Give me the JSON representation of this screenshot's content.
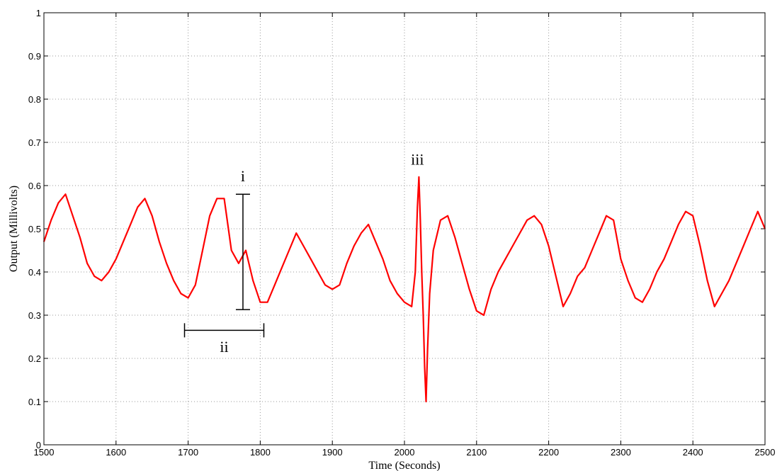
{
  "chart_data": {
    "type": "line",
    "title": "",
    "xlabel": "Time (Seconds)",
    "ylabel": "Output (Millivolts)",
    "xlim": [
      1500,
      2500
    ],
    "ylim": [
      0,
      1
    ],
    "xticks": [
      1500,
      1600,
      1700,
      1800,
      1900,
      2000,
      2100,
      2200,
      2300,
      2400,
      2500
    ],
    "yticks": [
      0,
      0.1,
      0.2,
      0.3,
      0.4,
      0.5,
      0.6,
      0.7,
      0.8,
      0.9,
      1
    ],
    "ytick_labels": [
      "0",
      "0.1",
      "0.2",
      "0.3",
      "0.4",
      "0.5",
      "0.6",
      "0.7",
      "0.8",
      "0.9",
      "1"
    ],
    "grid": true,
    "line_color": "#ff0000",
    "series": [
      {
        "x": [
          1500,
          1510,
          1520,
          1530,
          1540,
          1550,
          1560,
          1570,
          1580,
          1590,
          1600,
          1610,
          1620,
          1630,
          1640,
          1650,
          1660,
          1670,
          1680,
          1690,
          1700,
          1710,
          1720,
          1730,
          1740,
          1750,
          1760,
          1770,
          1780,
          1790,
          1800,
          1810,
          1820,
          1830,
          1840,
          1850,
          1860,
          1870,
          1880,
          1890,
          1900,
          1910,
          1920,
          1930,
          1940,
          1950,
          1960,
          1970,
          1980,
          1990,
          2000,
          2010,
          2015,
          2018,
          2020,
          2022,
          2024,
          2026,
          2028,
          2030,
          2032,
          2035,
          2040,
          2050,
          2060,
          2070,
          2080,
          2090,
          2100,
          2110,
          2120,
          2130,
          2140,
          2150,
          2160,
          2170,
          2180,
          2190,
          2200,
          2210,
          2220,
          2230,
          2240,
          2250,
          2260,
          2270,
          2280,
          2290,
          2300,
          2310,
          2320,
          2330,
          2340,
          2350,
          2360,
          2370,
          2380,
          2390,
          2400,
          2410,
          2420,
          2430,
          2440,
          2450,
          2460,
          2470,
          2480,
          2490,
          2500
        ],
        "y": [
          0.47,
          0.52,
          0.56,
          0.58,
          0.53,
          0.48,
          0.42,
          0.39,
          0.38,
          0.4,
          0.43,
          0.47,
          0.51,
          0.55,
          0.57,
          0.53,
          0.47,
          0.42,
          0.38,
          0.35,
          0.34,
          0.37,
          0.45,
          0.53,
          0.57,
          0.57,
          0.45,
          0.42,
          0.45,
          0.38,
          0.33,
          0.33,
          0.37,
          0.41,
          0.45,
          0.49,
          0.46,
          0.43,
          0.4,
          0.37,
          0.36,
          0.37,
          0.42,
          0.46,
          0.49,
          0.51,
          0.47,
          0.43,
          0.38,
          0.35,
          0.33,
          0.32,
          0.4,
          0.55,
          0.62,
          0.52,
          0.4,
          0.3,
          0.18,
          0.1,
          0.22,
          0.35,
          0.45,
          0.52,
          0.53,
          0.48,
          0.42,
          0.36,
          0.31,
          0.3,
          0.36,
          0.4,
          0.43,
          0.46,
          0.49,
          0.52,
          0.53,
          0.51,
          0.46,
          0.39,
          0.32,
          0.35,
          0.39,
          0.41,
          0.45,
          0.49,
          0.53,
          0.52,
          0.43,
          0.38,
          0.34,
          0.33,
          0.36,
          0.4,
          0.43,
          0.47,
          0.51,
          0.54,
          0.53,
          0.46,
          0.38,
          0.32,
          0.35,
          0.38,
          0.42,
          0.46,
          0.5,
          0.54,
          0.5
        ]
      }
    ],
    "annotations": [
      {
        "label": "i",
        "type": "vertical-bracket",
        "x": 1776,
        "y1": 0.313,
        "y2": 0.58,
        "label_x": 1776,
        "label_y": 0.61
      },
      {
        "label": "ii",
        "type": "horizontal-bracket",
        "x1": 1695,
        "x2": 1805,
        "y": 0.265,
        "label_x": 1750,
        "label_y": 0.215
      },
      {
        "label": "iii",
        "type": "text",
        "label_x": 2018,
        "label_y": 0.648
      }
    ]
  }
}
